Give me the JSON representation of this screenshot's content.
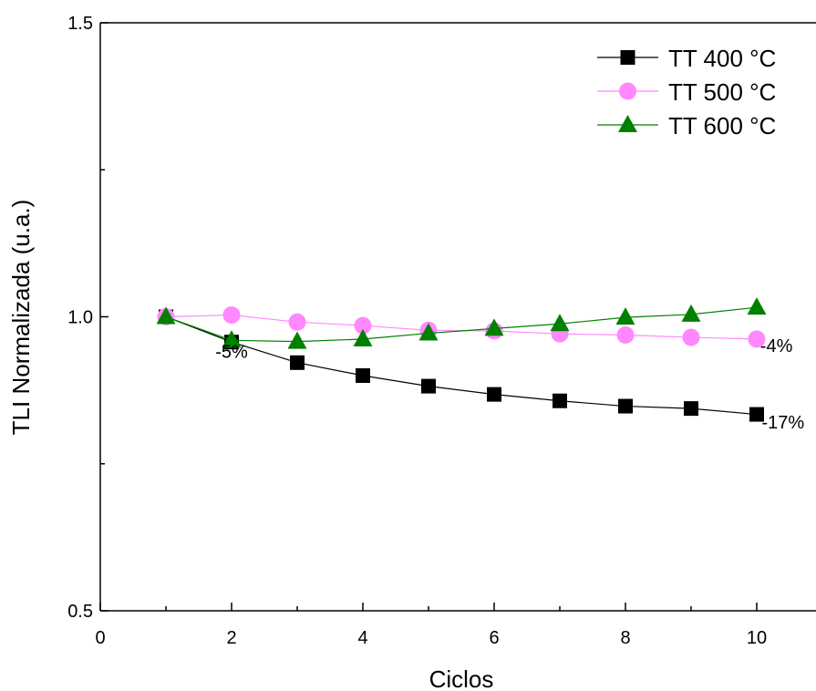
{
  "chart_data": {
    "type": "line",
    "title": "",
    "xlabel": "Ciclos",
    "ylabel": "TLI Normalizada (u.a.)",
    "xlim": [
      0,
      11
    ],
    "ylim": [
      0.5,
      1.5
    ],
    "xticks": [
      0,
      2,
      4,
      6,
      8,
      10
    ],
    "xtick_labels": [
      "0",
      "2",
      "4",
      "6",
      "8",
      "10"
    ],
    "yticks": [
      0.5,
      1.0,
      1.5
    ],
    "ytick_labels": [
      "0.5",
      "1.0",
      "1.5"
    ],
    "legend_position": "top-right",
    "series": [
      {
        "name": "TT 400 °C",
        "color": "#000000",
        "marker": "square",
        "x": [
          1,
          2,
          3,
          4,
          5,
          6,
          7,
          8,
          9,
          10
        ],
        "y": [
          1.0,
          0.957,
          0.922,
          0.9,
          0.882,
          0.868,
          0.857,
          0.848,
          0.844,
          0.834
        ]
      },
      {
        "name": "TT 500 °C",
        "color": "#ff88ff",
        "marker": "circle",
        "x": [
          1,
          2,
          3,
          4,
          5,
          6,
          7,
          8,
          9,
          10
        ],
        "y": [
          1.0,
          1.003,
          0.991,
          0.985,
          0.977,
          0.976,
          0.971,
          0.969,
          0.965,
          0.962
        ]
      },
      {
        "name": "TT 600 °C",
        "color": "#008000",
        "marker": "triangle",
        "x": [
          1,
          2,
          3,
          4,
          5,
          6,
          7,
          8,
          9,
          10
        ],
        "y": [
          1.0,
          0.96,
          0.958,
          0.962,
          0.972,
          0.98,
          0.988,
          0.999,
          1.004,
          1.016
        ]
      }
    ],
    "annotations": [
      {
        "text": "-5%",
        "x": 2,
        "y": 0.93
      },
      {
        "text": "-4%",
        "x": 10.3,
        "y": 0.94
      },
      {
        "text": "-17%",
        "x": 10.4,
        "y": 0.81
      }
    ]
  }
}
